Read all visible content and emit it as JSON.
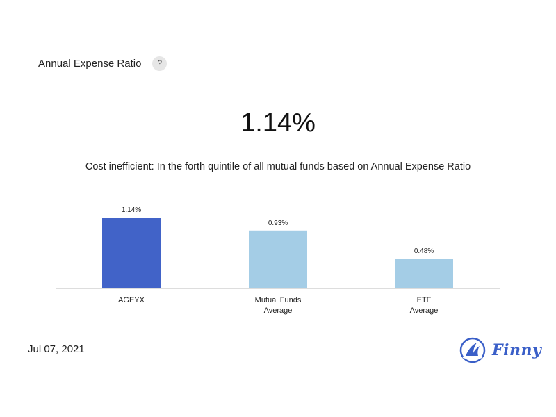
{
  "header": {
    "title": "Annual Expense Ratio",
    "help_label": "?"
  },
  "headline_value": "1.14%",
  "description": "Cost inefficient: In the forth quintile of all mutual funds based on Annual Expense Ratio",
  "date": "Jul 07, 2021",
  "brand": {
    "name": "Finny",
    "color": "#3a5fc8"
  },
  "chart_data": {
    "type": "bar",
    "categories": [
      [
        "AGEYX"
      ],
      [
        "Mutual Funds",
        "Average"
      ],
      [
        "ETF",
        "Average"
      ]
    ],
    "values": [
      1.14,
      0.93,
      0.48
    ],
    "value_labels": [
      "1.14%",
      "0.93%",
      "0.48%"
    ],
    "colors": [
      "#4163c8",
      "#a4cde6",
      "#a4cde6"
    ],
    "ylim": [
      0,
      1.14
    ],
    "grid": false,
    "legend": "none"
  }
}
